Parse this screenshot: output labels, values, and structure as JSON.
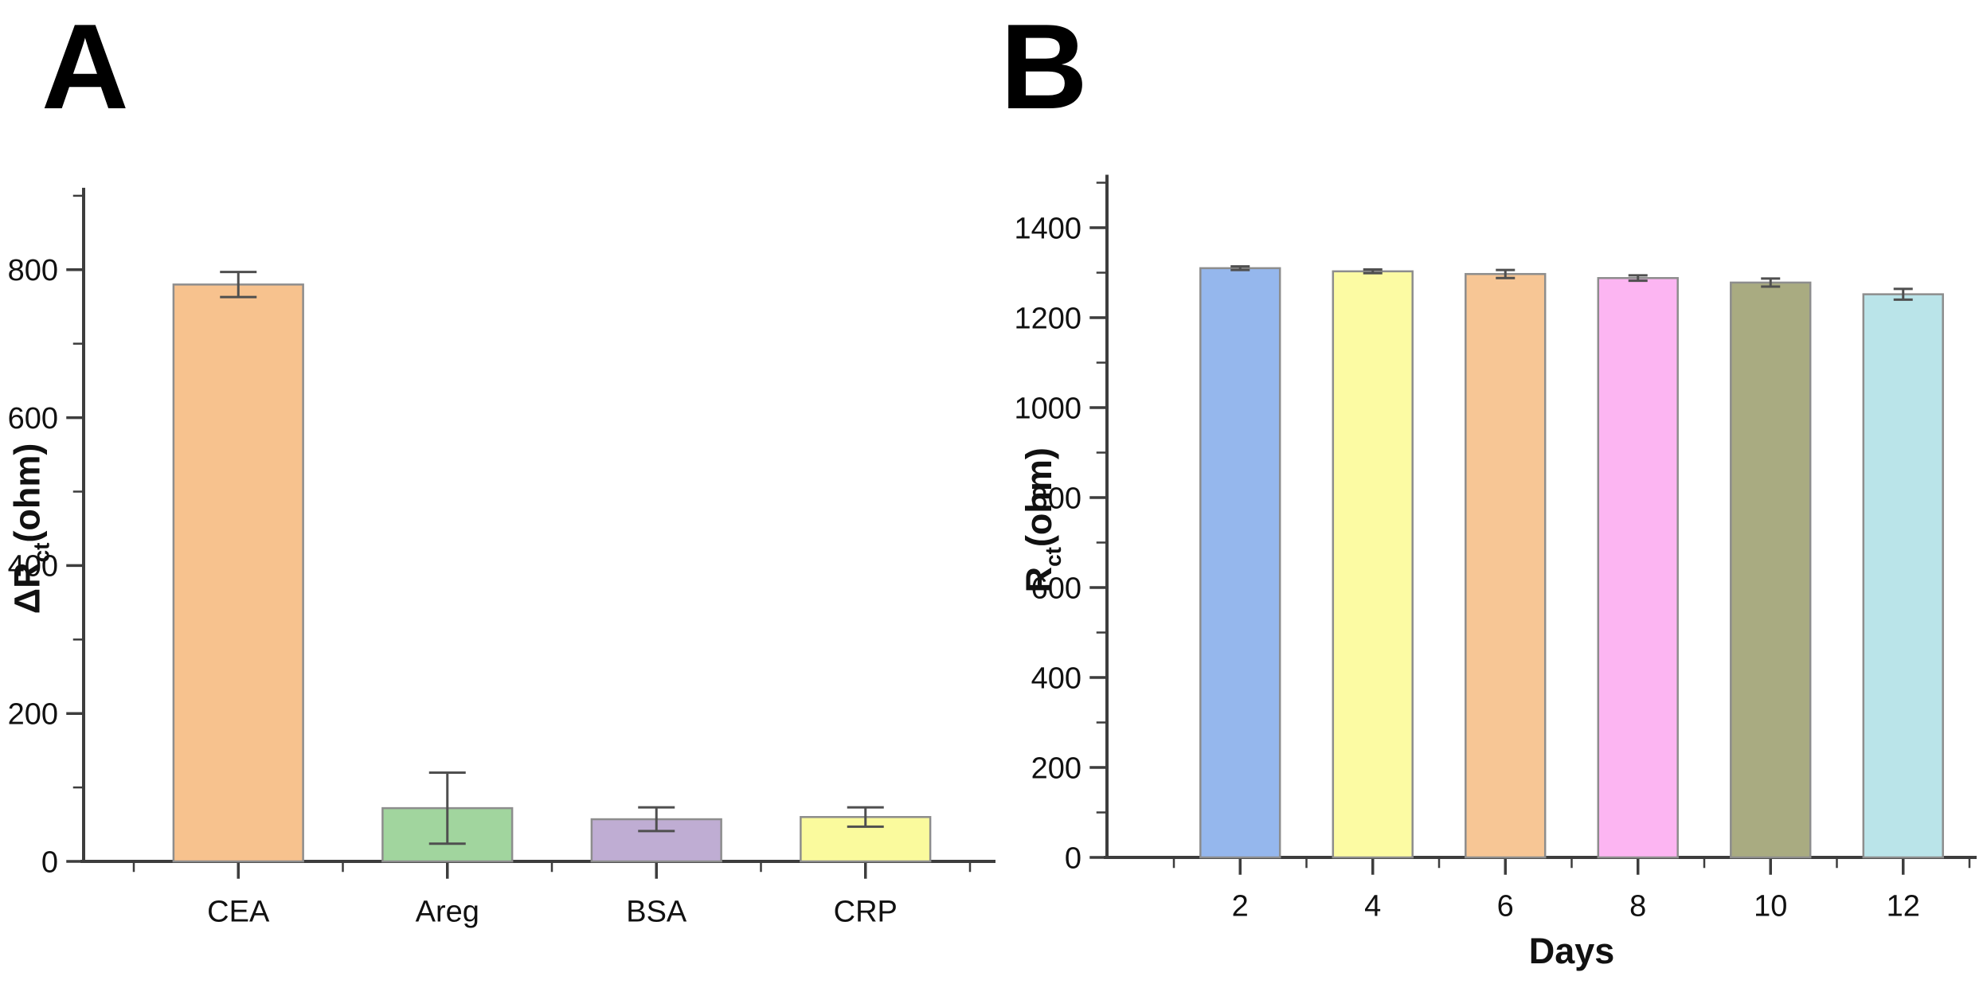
{
  "figure": {
    "background": "#ffffff",
    "text_color": "#111111",
    "axis_color": "#3d3d3d"
  },
  "panels": [
    {
      "letter": "A"
    },
    {
      "letter": "B"
    }
  ],
  "chart_data": [
    {
      "type": "bar",
      "title": "",
      "categories": [
        "CEA",
        "Areg",
        "BSA",
        "CRP"
      ],
      "values": [
        780,
        72,
        57,
        60
      ],
      "errors": [
        17,
        48,
        16,
        13
      ],
      "bar_colors": [
        "#f7c28e",
        "#a1d59e",
        "#bfadd3",
        "#fafa9d"
      ],
      "bar_edge_color": "#8d8d8d",
      "error_color": "#4f4f4f",
      "axis_color": "#3d3d3d",
      "xlabel": "",
      "ylabel_parts": [
        {
          "text": "ΔR"
        },
        {
          "text": "ct",
          "sub": true
        },
        {
          "text": "(ohm)"
        }
      ],
      "ylim": [
        0,
        900
      ],
      "yticks": [
        0,
        200,
        400,
        600,
        800
      ],
      "yminor_step": 100,
      "grid": false,
      "legend": null
    },
    {
      "type": "bar",
      "title": "",
      "categories": [
        "2",
        "4",
        "6",
        "8",
        "10",
        "12"
      ],
      "values": [
        1310,
        1303,
        1297,
        1288,
        1278,
        1252
      ],
      "errors": [
        4,
        4,
        9,
        6,
        9,
        12
      ],
      "bar_colors": [
        "#95b7ed",
        "#fcfba3",
        "#f7c695",
        "#fcb5f2",
        "#a9ab81",
        "#bae4e9"
      ],
      "bar_edge_color": "#8d8d8d",
      "error_color": "#4f4f4f",
      "axis_color": "#3d3d3d",
      "xlabel": "Days",
      "ylabel_parts": [
        {
          "text": "R"
        },
        {
          "text": "ct",
          "sub": true
        },
        {
          "text": "(ohm)"
        }
      ],
      "ylim": [
        0,
        1500
      ],
      "yticks": [
        0,
        200,
        400,
        600,
        800,
        1000,
        1200,
        1400
      ],
      "yminor_step": 100,
      "grid": false,
      "legend": null
    }
  ]
}
